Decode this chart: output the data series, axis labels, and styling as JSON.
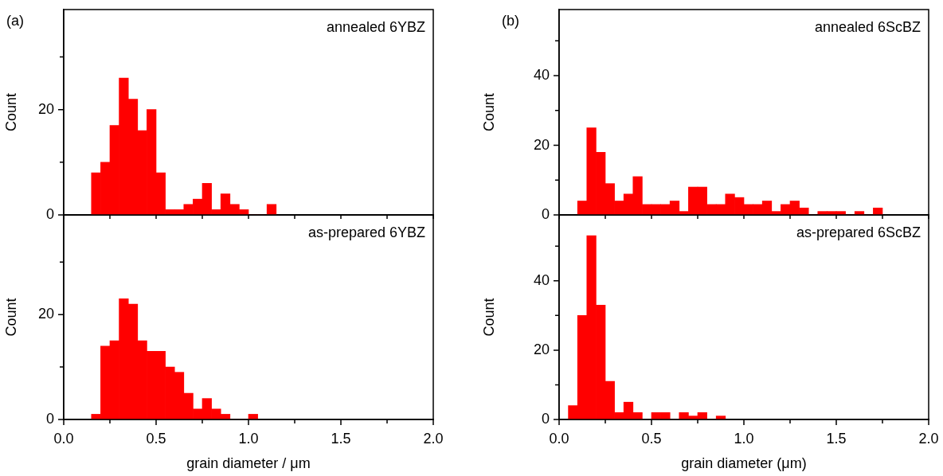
{
  "chart_data": [
    {
      "type": "histogram",
      "title": "(a)",
      "ylabel": "Count",
      "annotations": [
        "annealed 6YBZ"
      ],
      "color": "#ff0000",
      "bins": [
        0.15,
        0.2,
        0.25,
        0.3,
        0.35,
        0.4,
        0.45,
        0.5,
        0.55,
        0.6,
        0.65,
        0.7,
        0.75,
        0.8,
        0.85,
        0.9,
        0.95,
        1.0,
        1.05,
        1.1,
        1.15
      ],
      "values": [
        8,
        10,
        17,
        26,
        22,
        16,
        20,
        8,
        1,
        1,
        2,
        3,
        6,
        1,
        4,
        2,
        1,
        0,
        0,
        2
      ],
      "xlim": [
        0,
        2
      ],
      "xticks": [
        {
          "value": 0,
          "label": null
        },
        {
          "value": 0.25,
          "label": null
        },
        {
          "value": 0.5,
          "label": null
        },
        {
          "value": 0.75,
          "label": null
        },
        {
          "value": 1,
          "label": null
        },
        {
          "value": 1.25,
          "label": null
        },
        {
          "value": 1.5,
          "label": null
        },
        {
          "value": 1.75,
          "label": null
        },
        {
          "value": 2,
          "label": null
        }
      ],
      "ylim": [
        0,
        39
      ],
      "yticks": [
        0,
        {
          "value": 10,
          "label": null
        },
        20,
        {
          "value": 30,
          "label": null
        }
      ],
      "tick_labels": "y",
      "grid": false,
      "legend": false
    },
    {
      "type": "histogram",
      "title": "(b)",
      "ylabel": "Count",
      "annotations": [
        "annealed 6ScBZ"
      ],
      "color": "#ff0000",
      "bins": [
        0.1,
        0.15,
        0.2,
        0.25,
        0.3,
        0.35,
        0.4,
        0.45,
        0.5,
        0.55,
        0.6,
        0.65,
        0.7,
        0.75,
        0.8,
        0.85,
        0.9,
        0.95,
        1.0,
        1.05,
        1.1,
        1.15,
        1.2,
        1.25,
        1.3,
        1.35,
        1.4,
        1.45,
        1.5,
        1.55,
        1.6,
        1.65,
        1.7,
        1.75
      ],
      "values": [
        4,
        25,
        18,
        9,
        4,
        6,
        11,
        3,
        3,
        3,
        4,
        1,
        8,
        8,
        3,
        3,
        6,
        5,
        3,
        3,
        4,
        1,
        3,
        4,
        2,
        0,
        1,
        1,
        1,
        0,
        1,
        0,
        2
      ],
      "xlim": [
        0,
        2
      ],
      "xticks": [
        {
          "value": 0,
          "label": null
        },
        {
          "value": 0.25,
          "label": null
        },
        {
          "value": 0.5,
          "label": null
        },
        {
          "value": 0.75,
          "label": null
        },
        {
          "value": 1,
          "label": null
        },
        {
          "value": 1.25,
          "label": null
        },
        {
          "value": 1.5,
          "label": null
        },
        {
          "value": 1.75,
          "label": null
        },
        {
          "value": 2,
          "label": null
        }
      ],
      "ylim": [
        0,
        59
      ],
      "yticks": [
        0,
        {
          "value": 10,
          "label": null
        },
        20,
        {
          "value": 30,
          "label": null
        },
        40,
        {
          "value": 50,
          "label": null
        }
      ],
      "tick_labels": "y",
      "grid": false,
      "legend": false
    },
    {
      "type": "histogram",
      "xlabel": "grain diameter / μm",
      "ylabel": "Count",
      "annotations": [
        "as-prepared 6YBZ"
      ],
      "color": "#ff0000",
      "bins": [
        0.15,
        0.2,
        0.25,
        0.3,
        0.35,
        0.4,
        0.45,
        0.5,
        0.55,
        0.6,
        0.65,
        0.7,
        0.75,
        0.8,
        0.85,
        0.9,
        0.95,
        1.0,
        1.05
      ],
      "values": [
        1,
        14,
        15,
        23,
        22,
        15,
        13,
        13,
        10,
        9,
        5,
        2,
        4,
        2,
        1,
        0,
        0,
        1
      ],
      "xlim": [
        0,
        2
      ],
      "xticks": [
        {
          "value": 0,
          "label": "0.0"
        },
        {
          "value": 0.25,
          "label": null
        },
        {
          "value": 0.5,
          "label": "0.5"
        },
        {
          "value": 0.75,
          "label": null
        },
        {
          "value": 1,
          "label": "1.0"
        },
        {
          "value": 1.25,
          "label": null
        },
        {
          "value": 1.5,
          "label": "1.5"
        },
        {
          "value": 1.75,
          "label": null
        },
        {
          "value": 2,
          "label": "2.0"
        }
      ],
      "ylim": [
        0,
        39
      ],
      "yticks": [
        0,
        {
          "value": 10,
          "label": null
        },
        20,
        {
          "value": 30,
          "label": null
        }
      ],
      "grid": false,
      "legend": false
    },
    {
      "type": "histogram",
      "xlabel": "grain diameter (μm)",
      "ylabel": "Count",
      "annotations": [
        "as-prepared 6ScBZ"
      ],
      "color": "#ff0000",
      "bins": [
        0.05,
        0.1,
        0.15,
        0.2,
        0.25,
        0.3,
        0.35,
        0.4,
        0.45,
        0.5,
        0.55,
        0.6,
        0.65,
        0.7,
        0.75,
        0.8,
        0.85,
        0.9
      ],
      "values": [
        4,
        30,
        53,
        33,
        11,
        2,
        5,
        2,
        0,
        2,
        2,
        0,
        2,
        1,
        2,
        0,
        1
      ],
      "xlim": [
        0,
        2
      ],
      "xticks": [
        {
          "value": 0,
          "label": "0.0"
        },
        {
          "value": 0.25,
          "label": null
        },
        {
          "value": 0.5,
          "label": "0.5"
        },
        {
          "value": 0.75,
          "label": null
        },
        {
          "value": 1,
          "label": "1.0"
        },
        {
          "value": 1.25,
          "label": null
        },
        {
          "value": 1.5,
          "label": "1.5"
        },
        {
          "value": 1.75,
          "label": null
        },
        {
          "value": 2,
          "label": "2.0"
        }
      ],
      "ylim": [
        0,
        59
      ],
      "yticks": [
        0,
        {
          "value": 10,
          "label": null
        },
        20,
        {
          "value": 30,
          "label": null
        },
        40,
        {
          "value": 50,
          "label": null
        }
      ],
      "grid": false,
      "legend": false
    }
  ]
}
